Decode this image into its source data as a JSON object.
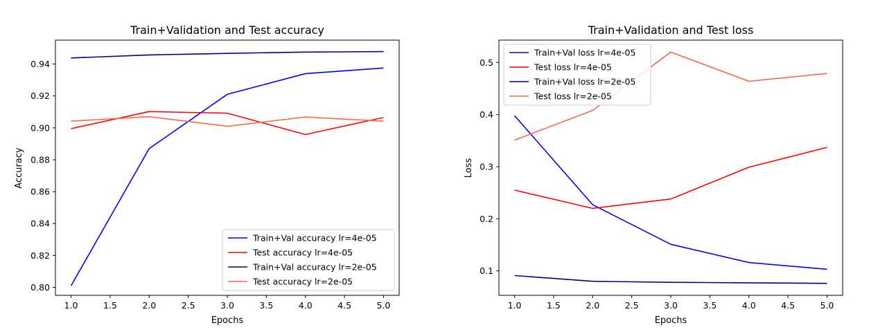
{
  "chart_data": [
    {
      "type": "line",
      "title": "Train+Validation and Test accuracy",
      "xlabel": "Epochs",
      "ylabel": "Accuracy",
      "x": [
        1,
        2,
        3,
        4,
        5
      ],
      "xlim": [
        0.8,
        5.2
      ],
      "ylim": [
        0.795,
        0.955
      ],
      "xticks": [
        "1.0",
        "1.5",
        "2.0",
        "2.5",
        "3.0",
        "3.5",
        "4.0",
        "4.5",
        "5.0"
      ],
      "yticks": [
        "0.80",
        "0.82",
        "0.84",
        "0.86",
        "0.88",
        "0.90",
        "0.92",
        "0.94"
      ],
      "legend_position": "lower right",
      "grid": false,
      "series": [
        {
          "name": "Train+Val accuracy lr=4e-05",
          "color": "#0000ff",
          "values": [
            0.801,
            0.887,
            0.921,
            0.934,
            0.9375
          ]
        },
        {
          "name": "Test accuracy lr=4e-05",
          "color": "#ff0000",
          "values": [
            0.8995,
            0.9102,
            0.9092,
            0.8958,
            0.9065
          ]
        },
        {
          "name": "Train+Val accuracy lr=2e-05",
          "color": "#00008b",
          "values": [
            0.9438,
            0.9457,
            0.9467,
            0.9475,
            0.9478
          ]
        },
        {
          "name": "Test accuracy lr=2e-05",
          "color": "#ff6347",
          "values": [
            0.9042,
            0.907,
            0.901,
            0.9068,
            0.9042
          ]
        }
      ]
    },
    {
      "type": "line",
      "title": "Train+Validation and Test loss",
      "xlabel": "Epochs",
      "ylabel": "Loss",
      "x": [
        1,
        2,
        3,
        4,
        5
      ],
      "xlim": [
        0.8,
        5.2
      ],
      "ylim": [
        0.053,
        0.543
      ],
      "xticks": [
        "1.0",
        "1.5",
        "2.0",
        "2.5",
        "3.0",
        "3.5",
        "4.0",
        "4.5",
        "5.0"
      ],
      "yticks": [
        "0.1",
        "0.2",
        "0.3",
        "0.4",
        "0.5"
      ],
      "legend_position": "upper left",
      "grid": false,
      "series": [
        {
          "name": "Train+Val loss lr=4e-05",
          "color": "#0000ff",
          "values": [
            0.398,
            0.227,
            0.151,
            0.116,
            0.103
          ]
        },
        {
          "name": "Test loss lr=4e-05",
          "color": "#ff0000",
          "values": [
            0.255,
            0.22,
            0.238,
            0.299,
            0.337
          ]
        },
        {
          "name": "Train+Val loss lr=2e-05",
          "color": "#00008b",
          "values": [
            0.091,
            0.08,
            0.078,
            0.077,
            0.076
          ]
        },
        {
          "name": "Test loss lr=2e-05",
          "color": "#ff6347",
          "values": [
            0.351,
            0.408,
            0.52,
            0.464,
            0.479
          ]
        }
      ]
    }
  ]
}
